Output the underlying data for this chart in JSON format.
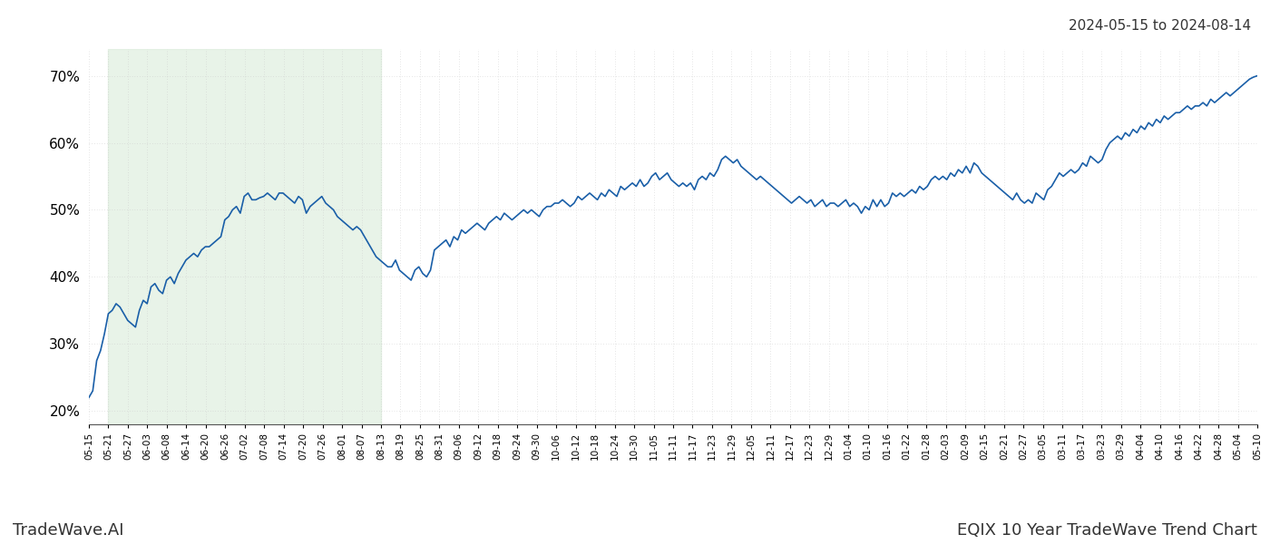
{
  "title_top_right": "2024-05-15 to 2024-08-14",
  "title_bottom_left": "TradeWave.AI",
  "title_bottom_right": "EQIX 10 Year TradeWave Trend Chart",
  "background_color": "#ffffff",
  "line_color": "#1a5fa8",
  "line_width": 1.2,
  "shade_color": "#d6ead6",
  "shade_alpha": 0.55,
  "ylim": [
    18,
    74
  ],
  "yticks": [
    20,
    30,
    40,
    50,
    60,
    70
  ],
  "ytick_labels": [
    "20%",
    "30%",
    "40%",
    "50%",
    "60%",
    "70%"
  ],
  "x_labels": [
    "05-15",
    "05-21",
    "05-27",
    "06-03",
    "06-08",
    "06-14",
    "06-20",
    "06-26",
    "07-02",
    "07-08",
    "07-14",
    "07-20",
    "07-26",
    "08-01",
    "08-07",
    "08-13",
    "08-19",
    "08-25",
    "08-31",
    "09-06",
    "09-12",
    "09-18",
    "09-24",
    "09-30",
    "10-06",
    "10-12",
    "10-18",
    "10-24",
    "10-30",
    "11-05",
    "11-11",
    "11-17",
    "11-23",
    "11-29",
    "12-05",
    "12-11",
    "12-17",
    "12-23",
    "12-29",
    "01-04",
    "01-10",
    "01-16",
    "01-22",
    "01-28",
    "02-03",
    "02-09",
    "02-15",
    "02-21",
    "02-27",
    "03-05",
    "03-11",
    "03-17",
    "03-23",
    "03-29",
    "04-04",
    "04-10",
    "04-16",
    "04-22",
    "04-28",
    "05-04",
    "05-10"
  ],
  "shade_x_start_label": "05-21",
  "shade_x_end_label": "08-13",
  "y_values": [
    22.0,
    23.0,
    27.5,
    29.0,
    31.5,
    34.5,
    35.0,
    36.0,
    35.5,
    34.5,
    33.5,
    33.0,
    32.5,
    35.0,
    36.5,
    36.0,
    38.5,
    39.0,
    38.0,
    37.5,
    39.5,
    40.0,
    39.0,
    40.5,
    41.5,
    42.5,
    43.0,
    43.5,
    43.0,
    44.0,
    44.5,
    44.5,
    45.0,
    45.5,
    46.0,
    48.5,
    49.0,
    50.0,
    50.5,
    49.5,
    52.0,
    52.5,
    51.5,
    51.5,
    51.8,
    52.0,
    52.5,
    52.0,
    51.5,
    52.5,
    52.5,
    52.0,
    51.5,
    51.0,
    52.0,
    51.5,
    49.5,
    50.5,
    51.0,
    51.5,
    52.0,
    51.0,
    50.5,
    50.0,
    49.0,
    48.5,
    48.0,
    47.5,
    47.0,
    47.5,
    47.0,
    46.0,
    45.0,
    44.0,
    43.0,
    42.5,
    42.0,
    41.5,
    41.5,
    42.5,
    41.0,
    40.5,
    40.0,
    39.5,
    41.0,
    41.5,
    40.5,
    40.0,
    41.0,
    44.0,
    44.5,
    45.0,
    45.5,
    44.5,
    46.0,
    45.5,
    47.0,
    46.5,
    47.0,
    47.5,
    48.0,
    47.5,
    47.0,
    48.0,
    48.5,
    49.0,
    48.5,
    49.5,
    49.0,
    48.5,
    49.0,
    49.5,
    50.0,
    49.5,
    50.0,
    49.5,
    49.0,
    50.0,
    50.5,
    50.5,
    51.0,
    51.0,
    51.5,
    51.0,
    50.5,
    51.0,
    52.0,
    51.5,
    52.0,
    52.5,
    52.0,
    51.5,
    52.5,
    52.0,
    53.0,
    52.5,
    52.0,
    53.5,
    53.0,
    53.5,
    54.0,
    53.5,
    54.5,
    53.5,
    54.0,
    55.0,
    55.5,
    54.5,
    55.0,
    55.5,
    54.5,
    54.0,
    53.5,
    54.0,
    53.5,
    54.0,
    53.0,
    54.5,
    55.0,
    54.5,
    55.5,
    55.0,
    56.0,
    57.5,
    58.0,
    57.5,
    57.0,
    57.5,
    56.5,
    56.0,
    55.5,
    55.0,
    54.5,
    55.0,
    54.5,
    54.0,
    53.5,
    53.0,
    52.5,
    52.0,
    51.5,
    51.0,
    51.5,
    52.0,
    51.5,
    51.0,
    51.5,
    50.5,
    51.0,
    51.5,
    50.5,
    51.0,
    51.0,
    50.5,
    51.0,
    51.5,
    50.5,
    51.0,
    50.5,
    49.5,
    50.5,
    50.0,
    51.5,
    50.5,
    51.5,
    50.5,
    51.0,
    52.5,
    52.0,
    52.5,
    52.0,
    52.5,
    53.0,
    52.5,
    53.5,
    53.0,
    53.5,
    54.5,
    55.0,
    54.5,
    55.0,
    54.5,
    55.5,
    55.0,
    56.0,
    55.5,
    56.5,
    55.5,
    57.0,
    56.5,
    55.5,
    55.0,
    54.5,
    54.0,
    53.5,
    53.0,
    52.5,
    52.0,
    51.5,
    52.5,
    51.5,
    51.0,
    51.5,
    51.0,
    52.5,
    52.0,
    51.5,
    53.0,
    53.5,
    54.5,
    55.5,
    55.0,
    55.5,
    56.0,
    55.5,
    56.0,
    57.0,
    56.5,
    58.0,
    57.5,
    57.0,
    57.5,
    59.0,
    60.0,
    60.5,
    61.0,
    60.5,
    61.5,
    61.0,
    62.0,
    61.5,
    62.5,
    62.0,
    63.0,
    62.5,
    63.5,
    63.0,
    64.0,
    63.5,
    64.0,
    64.5,
    64.5,
    65.0,
    65.5,
    65.0,
    65.5,
    65.5,
    66.0,
    65.5,
    66.5,
    66.0,
    66.5,
    67.0,
    67.5,
    67.0,
    67.5,
    68.0,
    68.5,
    69.0,
    69.5,
    69.8,
    70.0
  ],
  "grid_color": "#cccccc",
  "grid_linestyle": "dotted"
}
